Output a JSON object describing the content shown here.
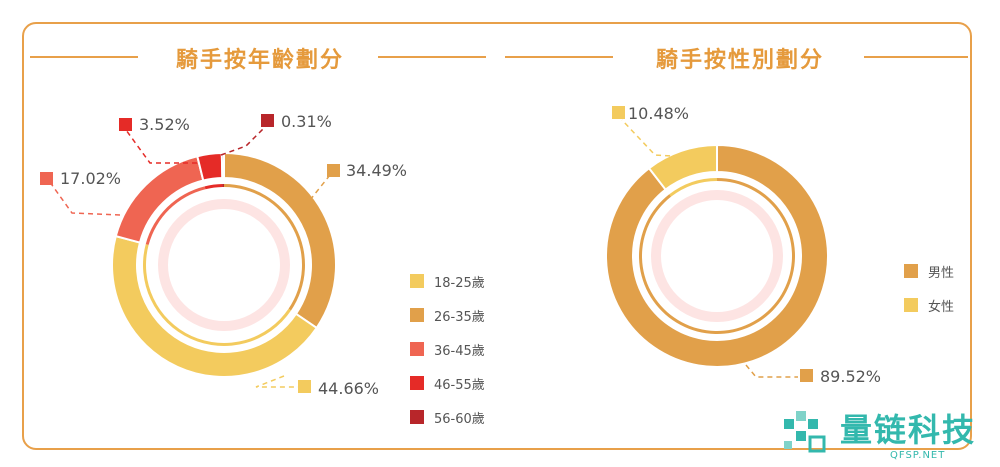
{
  "chart_data": [
    {
      "type": "pie",
      "style": "donut",
      "title": "騎手按年齡劃分",
      "categories": [
        "18-25歲",
        "26-35歲",
        "36-45歲",
        "46-55歲",
        "56-60歲"
      ],
      "values": [
        44.66,
        34.49,
        17.02,
        3.52,
        0.31
      ],
      "labels": [
        "44.66%",
        "34.49%",
        "17.02%",
        "3.52%",
        "0.31%"
      ],
      "colors": [
        "#f3cb5e",
        "#e1a04a",
        "#ef6552",
        "#e52b27",
        "#b8262a"
      ],
      "legend_position": "right"
    },
    {
      "type": "pie",
      "style": "donut",
      "title": "騎手按性別劃分",
      "categories": [
        "男性",
        "女性"
      ],
      "values": [
        89.52,
        10.48
      ],
      "labels": [
        "89.52%",
        "10.48%"
      ],
      "colors": [
        "#e1a04a",
        "#f3cb5e"
      ],
      "legend_position": "right"
    }
  ],
  "watermark": {
    "brand": "量链科技",
    "site": "QFSP.NET"
  }
}
